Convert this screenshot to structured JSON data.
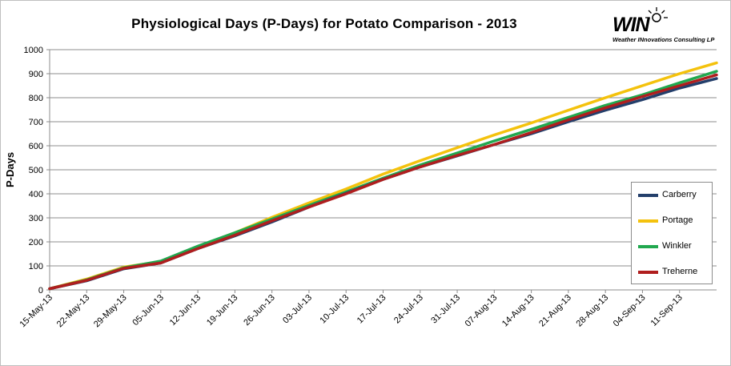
{
  "chart_data": {
    "type": "line",
    "title": "Physiological Days (P-Days) for Potato Comparison - 2013",
    "ylabel": "P-Days",
    "xlabel": "",
    "ylim": [
      0,
      1000
    ],
    "yticks": [
      0,
      100,
      200,
      300,
      400,
      500,
      600,
      700,
      800,
      900,
      1000
    ],
    "xlim": [
      "2013-05-15",
      "2013-09-18"
    ],
    "xtick_dates": [
      "2013-05-15",
      "2013-05-22",
      "2013-05-29",
      "2013-06-05",
      "2013-06-12",
      "2013-06-19",
      "2013-06-26",
      "2013-07-03",
      "2013-07-10",
      "2013-07-17",
      "2013-07-24",
      "2013-07-31",
      "2013-08-07",
      "2013-08-14",
      "2013-08-21",
      "2013-08-28",
      "2013-09-04",
      "2013-09-11"
    ],
    "xtick_labels": [
      "15-May-13",
      "22-May-13",
      "29-May-13",
      "05-Jun-13",
      "12-Jun-13",
      "19-Jun-13",
      "26-Jun-13",
      "03-Jul-13",
      "10-Jul-13",
      "17-Jul-13",
      "24-Jul-13",
      "31-Jul-13",
      "07-Aug-13",
      "14-Aug-13",
      "21-Aug-13",
      "28-Aug-13",
      "04-Sep-13",
      "11-Sep-13"
    ],
    "grid": "horizontal",
    "legend_position": "right",
    "series": [
      {
        "name": "Carberry",
        "color": "#243f6b",
        "x": [
          "2013-05-15",
          "2013-05-22",
          "2013-05-29",
          "2013-06-05",
          "2013-06-12",
          "2013-06-19",
          "2013-06-26",
          "2013-07-03",
          "2013-07-10",
          "2013-07-17",
          "2013-07-24",
          "2013-07-31",
          "2013-08-07",
          "2013-08-14",
          "2013-08-21",
          "2013-08-28",
          "2013-09-04",
          "2013-09-11",
          "2013-09-18"
        ],
        "y": [
          5,
          38,
          88,
          112,
          172,
          225,
          283,
          345,
          402,
          460,
          512,
          558,
          605,
          650,
          700,
          748,
          792,
          840,
          880
        ]
      },
      {
        "name": "Portage",
        "color": "#f4c20d",
        "x": [
          "2013-05-15",
          "2013-05-22",
          "2013-05-29",
          "2013-06-05",
          "2013-06-12",
          "2013-06-19",
          "2013-06-26",
          "2013-07-03",
          "2013-07-10",
          "2013-07-17",
          "2013-07-24",
          "2013-07-31",
          "2013-08-07",
          "2013-08-14",
          "2013-08-21",
          "2013-08-28",
          "2013-09-04",
          "2013-09-11",
          "2013-09-18"
        ],
        "y": [
          5,
          45,
          95,
          118,
          180,
          238,
          302,
          362,
          420,
          482,
          538,
          592,
          645,
          695,
          748,
          800,
          850,
          900,
          945
        ]
      },
      {
        "name": "Winkler",
        "color": "#21a84f",
        "x": [
          "2013-05-15",
          "2013-05-22",
          "2013-05-29",
          "2013-06-05",
          "2013-06-12",
          "2013-06-19",
          "2013-06-26",
          "2013-07-03",
          "2013-07-10",
          "2013-07-17",
          "2013-07-24",
          "2013-07-31",
          "2013-08-07",
          "2013-08-14",
          "2013-08-21",
          "2013-08-28",
          "2013-09-04",
          "2013-09-11",
          "2013-09-18"
        ],
        "y": [
          5,
          42,
          92,
          120,
          182,
          238,
          295,
          352,
          408,
          465,
          520,
          570,
          620,
          668,
          718,
          768,
          812,
          862,
          910
        ]
      },
      {
        "name": "Treherne",
        "color": "#b01e1e",
        "x": [
          "2013-05-15",
          "2013-05-22",
          "2013-05-29",
          "2013-06-05",
          "2013-06-12",
          "2013-06-19",
          "2013-06-26",
          "2013-07-03",
          "2013-07-10",
          "2013-07-17",
          "2013-07-24",
          "2013-07-31",
          "2013-08-07",
          "2013-08-14",
          "2013-08-21",
          "2013-08-28",
          "2013-09-04",
          "2013-09-11",
          "2013-09-18"
        ],
        "y": [
          5,
          40,
          90,
          112,
          172,
          228,
          288,
          345,
          400,
          460,
          512,
          560,
          605,
          655,
          708,
          758,
          805,
          850,
          895
        ]
      }
    ]
  },
  "logo": {
    "word": "WIN",
    "tagline": "Weather INnovations Consulting LP"
  }
}
